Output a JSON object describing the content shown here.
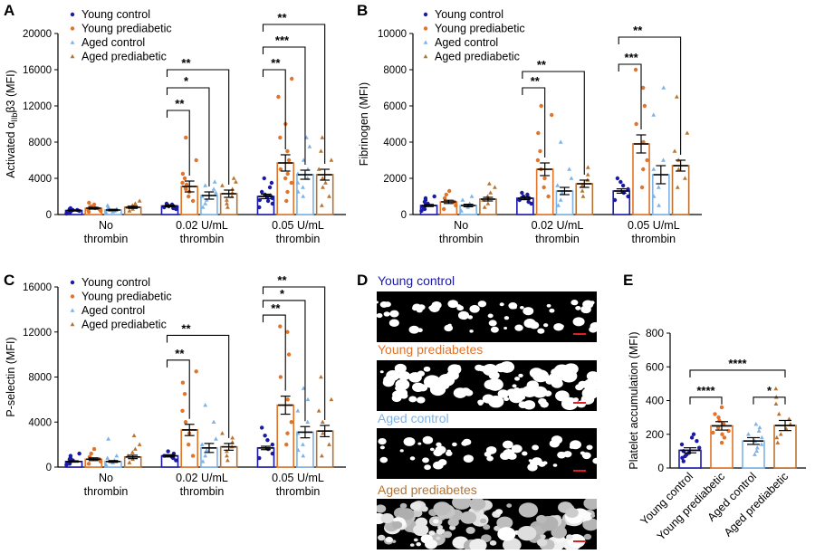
{
  "colors": {
    "young_control": "#1a1aa6",
    "young_prediabetic": "#e0742a",
    "aged_control": "#7fb2e5",
    "aged_prediabetic": "#b87333",
    "scale_bar": "#e02020",
    "axis": "#000000"
  },
  "panel_letters": {
    "a": "A",
    "b": "B",
    "c": "C",
    "d": "D",
    "e": "E"
  },
  "marker_icons": {
    "young_control": "circle-icon",
    "young_prediabetic": "circle-icon",
    "aged_control": "triangle-icon",
    "aged_prediabetic": "triangle-icon"
  },
  "chart_data": [
    {
      "id": "A",
      "type": "bar",
      "ylabel_parts": [
        "Activated α",
        "IIb",
        "β3 (MFI)"
      ],
      "ylim": [
        0,
        20000
      ],
      "yticks": [
        "0",
        "4000",
        "8000",
        "12000",
        "16000",
        "20000"
      ],
      "categories": [
        [
          "No",
          "thrombin"
        ],
        [
          "0.02 U/mL",
          "thrombin"
        ],
        [
          "0.05 U/mL",
          "thrombin"
        ]
      ],
      "legend": [
        "Young control",
        "Young prediabetic",
        "Aged control",
        "Aged prediabetic"
      ],
      "series": [
        {
          "name": "Young control",
          "values": [
            450,
            950,
            2000
          ],
          "sem": [
            60,
            90,
            250
          ]
        },
        {
          "name": "Young prediabetic",
          "values": [
            700,
            3100,
            5700
          ],
          "sem": [
            100,
            600,
            900
          ]
        },
        {
          "name": "Aged control",
          "values": [
            500,
            2100,
            4400
          ],
          "sem": [
            80,
            400,
            500
          ]
        },
        {
          "name": "Aged prediabetic",
          "values": [
            800,
            2300,
            4400
          ],
          "sem": [
            120,
            400,
            600
          ]
        }
      ],
      "points": {
        "Young control": [
          [
            100,
            200,
            300,
            400,
            500,
            600,
            700,
            300,
            400,
            500
          ],
          [
            600,
            700,
            800,
            900,
            1000,
            1100,
            1200,
            800,
            900,
            1000
          ],
          [
            800,
            1200,
            1500,
            1800,
            2000,
            2200,
            2500,
            3000,
            3500,
            4000,
            1600,
            2100
          ]
        ],
        "Young prediabetic": [
          [
            300,
            400,
            600,
            800,
            900,
            1100,
            1300,
            700,
            500
          ],
          [
            1500,
            2000,
            2500,
            3000,
            3500,
            4000,
            4500,
            6000,
            8500,
            2800,
            3300
          ],
          [
            1500,
            2500,
            3500,
            4500,
            5000,
            6000,
            7000,
            8500,
            10000,
            13000,
            15000,
            4000
          ]
        ],
        "Aged control": [
          [
            200,
            300,
            400,
            500,
            600,
            800,
            1000,
            500
          ],
          [
            800,
            1200,
            1600,
            2000,
            2400,
            2800,
            3200,
            3600
          ],
          [
            2000,
            2500,
            3000,
            3500,
            4000,
            4500,
            5000,
            6000,
            7500,
            8500
          ]
        ],
        "Aged prediabetic": [
          [
            400,
            600,
            800,
            1000,
            1200,
            1500,
            900
          ],
          [
            800,
            1200,
            1600,
            2000,
            2400,
            2800,
            3200,
            3600,
            4000
          ],
          [
            1000,
            2000,
            3000,
            4000,
            5000,
            6000,
            7000,
            8500,
            3500
          ]
        ]
      },
      "brackets": [
        {
          "group": 1,
          "from": 0,
          "to": 1,
          "level": 11500,
          "label": "**"
        },
        {
          "group": 1,
          "from": 0,
          "to": 2,
          "level": 14000,
          "label": "*"
        },
        {
          "group": 1,
          "from": 0,
          "to": 3,
          "level": 16000,
          "label": "**"
        },
        {
          "group": 2,
          "from": 0,
          "to": 1,
          "level": 16000,
          "label": "**"
        },
        {
          "group": 2,
          "from": 0,
          "to": 2,
          "level": 18500,
          "label": "***"
        },
        {
          "group": 2,
          "from": 0,
          "to": 3,
          "level": 21000,
          "label": "**"
        }
      ]
    },
    {
      "id": "B",
      "type": "bar",
      "ylabel_parts": [
        "Fibrinogen (MFI)"
      ],
      "ylim": [
        0,
        10000
      ],
      "yticks": [
        "0",
        "2000",
        "4000",
        "6000",
        "8000",
        "10000"
      ],
      "categories": [
        [
          "No",
          "thrombin"
        ],
        [
          "0.02 U/mL",
          "thrombin"
        ],
        [
          "0.05 U/mL",
          "thrombin"
        ]
      ],
      "legend": [
        "Young control",
        "Young prediabetic",
        "Aged control",
        "Aged prediabetic"
      ],
      "series": [
        {
          "name": "Young control",
          "values": [
            500,
            900,
            1300
          ],
          "sem": [
            60,
            80,
            120
          ]
        },
        {
          "name": "Young prediabetic",
          "values": [
            700,
            2500,
            3900
          ],
          "sem": [
            90,
            350,
            500
          ]
        },
        {
          "name": "Aged control",
          "values": [
            500,
            1300,
            2200
          ],
          "sem": [
            70,
            200,
            500
          ]
        },
        {
          "name": "Aged prediabetic",
          "values": [
            850,
            1700,
            2700
          ],
          "sem": [
            100,
            200,
            300
          ]
        }
      ],
      "points": {
        "Young control": [
          [
            200,
            300,
            400,
            500,
            600,
            700,
            800,
            900,
            1000
          ],
          [
            600,
            700,
            800,
            900,
            1000,
            1100,
            1200
          ],
          [
            800,
            1000,
            1200,
            1400,
            1600,
            1800,
            2000
          ]
        ],
        "Young prediabetic": [
          [
            300,
            500,
            700,
            900,
            1100,
            1300
          ],
          [
            1000,
            1500,
            2000,
            2500,
            3000,
            3500,
            4500,
            5500,
            6000
          ],
          [
            1500,
            2500,
            3000,
            4000,
            5000,
            6000,
            7000,
            8000
          ]
        ],
        "Aged control": [
          [
            200,
            400,
            600,
            800,
            1000
          ],
          [
            500,
            800,
            1200,
            1600,
            2000,
            2500,
            4000
          ],
          [
            500,
            1000,
            1500,
            2500,
            3000,
            5500,
            7000
          ]
        ],
        "Aged prediabetic": [
          [
            400,
            600,
            800,
            1000,
            1200,
            1500,
            1700
          ],
          [
            1000,
            1300,
            1600,
            1900,
            2200,
            2600
          ],
          [
            1500,
            2000,
            2500,
            3000,
            3500,
            4500,
            6500
          ]
        ]
      },
      "brackets": [
        {
          "group": 1,
          "from": 0,
          "to": 1,
          "level": 7000,
          "label": "**"
        },
        {
          "group": 1,
          "from": 0,
          "to": 3,
          "level": 7900,
          "label": "**"
        },
        {
          "group": 2,
          "from": 0,
          "to": 1,
          "level": 8300,
          "label": "***"
        },
        {
          "group": 2,
          "from": 0,
          "to": 3,
          "level": 9800,
          "label": "**"
        }
      ]
    },
    {
      "id": "C",
      "type": "bar",
      "ylabel_parts": [
        "P-selectin (MFI)"
      ],
      "ylim": [
        0,
        16000
      ],
      "yticks": [
        "0",
        "4000",
        "8000",
        "12000",
        "16000"
      ],
      "categories": [
        [
          "No",
          "thrombin"
        ],
        [
          "0.02 U/mL",
          "thrombin"
        ],
        [
          "0.05 U/mL",
          "thrombin"
        ]
      ],
      "legend": [
        "Young control",
        "Young prediabetic",
        "Aged control",
        "Aged prediabetic"
      ],
      "series": [
        {
          "name": "Young control",
          "values": [
            500,
            1000,
            1700
          ],
          "sem": [
            60,
            100,
            150
          ]
        },
        {
          "name": "Young prediabetic",
          "values": [
            700,
            3300,
            5500
          ],
          "sem": [
            120,
            500,
            800
          ]
        },
        {
          "name": "Aged control",
          "values": [
            500,
            1700,
            3100
          ],
          "sem": [
            80,
            400,
            500
          ]
        },
        {
          "name": "Aged prediabetic",
          "values": [
            900,
            1800,
            3200
          ],
          "sem": [
            150,
            300,
            500
          ]
        }
      ],
      "points": {
        "Young control": [
          [
            200,
            300,
            400,
            500,
            600,
            700,
            800,
            1000,
            1200
          ],
          [
            600,
            800,
            1000,
            1200,
            1400,
            900
          ],
          [
            800,
            1200,
            1600,
            2000,
            2400,
            2800,
            3500
          ]
        ],
        "Young prediabetic": [
          [
            300,
            500,
            700,
            900,
            1200,
            1600
          ],
          [
            1000,
            2000,
            3000,
            4000,
            5000,
            6500,
            7500,
            8500
          ],
          [
            2000,
            3000,
            4000,
            6000,
            8000,
            10000,
            12000,
            12500
          ]
        ],
        "Aged control": [
          [
            200,
            400,
            600,
            800,
            1000,
            2500
          ],
          [
            500,
            1000,
            1500,
            2000,
            2500,
            4000,
            5500
          ],
          [
            1000,
            1500,
            2000,
            3000,
            4000,
            5000,
            6000,
            7000
          ]
        ],
        "Aged prediabetic": [
          [
            400,
            700,
            1000,
            1300,
            1600,
            2000,
            2800
          ],
          [
            600,
            1000,
            1400,
            1800,
            2200,
            2600,
            3000
          ],
          [
            1000,
            2000,
            3000,
            4000,
            5000,
            6000,
            8000
          ]
        ]
      },
      "brackets": [
        {
          "group": 1,
          "from": 0,
          "to": 1,
          "level": 9500,
          "label": "**"
        },
        {
          "group": 1,
          "from": 0,
          "to": 3,
          "level": 11700,
          "label": "**"
        },
        {
          "group": 2,
          "from": 0,
          "to": 1,
          "level": 13500,
          "label": "**"
        },
        {
          "group": 2,
          "from": 0,
          "to": 2,
          "level": 14800,
          "label": "*"
        },
        {
          "group": 2,
          "from": 0,
          "to": 3,
          "level": 16000,
          "label": "**"
        }
      ]
    },
    {
      "id": "E",
      "type": "bar",
      "ylabel_parts": [
        "Platelet accumulation (MFI)"
      ],
      "ylim": [
        0,
        800
      ],
      "yticks": [
        "0",
        "200",
        "400",
        "600",
        "800"
      ],
      "categories": [
        "Young control",
        "Young prediabetic",
        "Aged control",
        "Aged prediabetic"
      ],
      "values": [
        105,
        250,
        160,
        252
      ],
      "sem": [
        15,
        25,
        20,
        30
      ],
      "points": [
        [
          40,
          60,
          80,
          100,
          120,
          140,
          160,
          180,
          200,
          90,
          70
        ],
        [
          150,
          180,
          200,
          220,
          240,
          260,
          280,
          300,
          320,
          360,
          210
        ],
        [
          80,
          100,
          120,
          140,
          160,
          180,
          200,
          220,
          240,
          260
        ],
        [
          150,
          180,
          200,
          230,
          260,
          290,
          320,
          380,
          420,
          470
        ]
      ],
      "brackets": [
        {
          "from": 0,
          "to": 3,
          "level": 580,
          "label": "****"
        },
        {
          "from": 0,
          "to": 1,
          "level": 420,
          "label": "****"
        },
        {
          "from": 2,
          "to": 3,
          "level": 420,
          "label": "*"
        }
      ]
    }
  ],
  "panel_d": {
    "images": [
      {
        "title": "Young control",
        "title_color": "#1a1aa6",
        "density": 0.35
      },
      {
        "title": "Young prediabetes",
        "title_color": "#e0742a",
        "density": 0.75
      },
      {
        "title": "Aged control",
        "title_color": "#7fb2e5",
        "density": 0.3
      },
      {
        "title": "Aged prediabetes",
        "title_color": "#b87333",
        "density": 0.95
      }
    ]
  }
}
